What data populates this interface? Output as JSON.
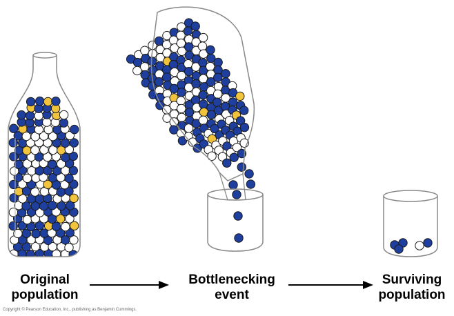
{
  "labels": {
    "original": [
      "Original",
      "population"
    ],
    "bottleneck": [
      "Bottlenecking",
      "event"
    ],
    "surviving": [
      "Surviving",
      "population"
    ]
  },
  "copyright": "Copyright © Pearson Education, Inc., publishing as Benjamin Cummings.",
  "colors": {
    "blue": "#1f3f9e",
    "white": "#ffffff",
    "yellow": "#f2c33c",
    "outline": "#1a1a1a",
    "glass": "#888888"
  },
  "populations": {
    "original": {
      "blue": 56,
      "white": 40,
      "yellow": 4
    },
    "bottleneck_bottle": {
      "blue": 58,
      "white": 38,
      "yellow": 4
    },
    "surviving": {
      "blue": 4,
      "white": 1,
      "yellow": 0
    }
  }
}
